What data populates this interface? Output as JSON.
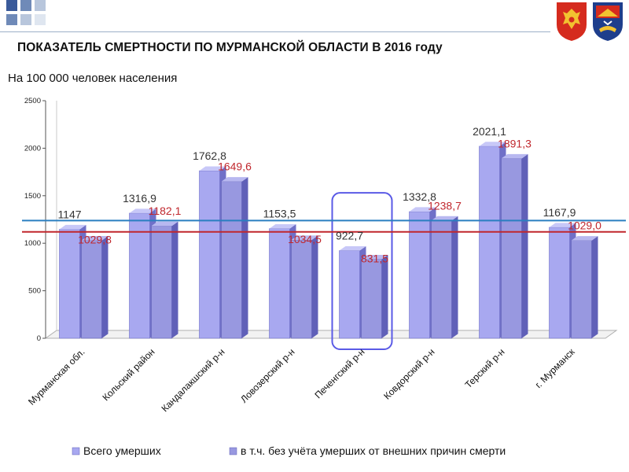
{
  "header": {
    "title": "ПОКАЗАТЕЛЬ СМЕРТНОСТИ ПО МУРМАНСКОЙ ОБЛАСТИ В 2016 году",
    "subtitle": "На 100 000 человек населения"
  },
  "emblems": [
    {
      "name": "russia-coat-of-arms-icon",
      "color": "#d52b1e"
    },
    {
      "name": "murmansk-oblast-coat-of-arms-icon",
      "color": "#d52b1e"
    }
  ],
  "colors": {
    "series_all": "#a8a8f0",
    "series_all_dark": "#7070c8",
    "series_excl": "#9898e0",
    "series_excl_dark": "#6060b8",
    "blue_line": "#2a7fc0",
    "red_line": "#c0272d",
    "highlight": "#5a5ae6"
  },
  "chart_data": {
    "type": "bar",
    "categories": [
      "Мурманская обл.",
      "Кольский район",
      "Кандалакшский р-н",
      "Ловозерский р-н",
      "Печенгский р-н",
      "Ковдорский р-н",
      "Терский р-н",
      "г. Мурманск"
    ],
    "series": [
      {
        "name": "Всего умерших",
        "values": [
          1147,
          1316.9,
          1762.8,
          1153.5,
          922.7,
          1332.8,
          2021.1,
          1167.9
        ]
      },
      {
        "name": "в т.ч. без учёта умерших от внешних причин смерти",
        "values": [
          1029.8,
          1182.1,
          1649.6,
          1034.5,
          831.5,
          1238.7,
          1891.3,
          1029.0
        ]
      }
    ],
    "value_labels": {
      "all": [
        "1147",
        "1316,9",
        "1762,8",
        "1153,5",
        "922,7",
        "1332,8",
        "2021,1",
        "1167,9"
      ],
      "excl": [
        "1029,8",
        "1182,1",
        "1649,6",
        "1034,5",
        "831,5",
        "1238,7",
        "1891,3",
        "1029,0"
      ]
    },
    "ylim": [
      0,
      2500
    ],
    "yticks": [
      "0",
      "500",
      "1000",
      "1500",
      "2000",
      "2500"
    ],
    "reference_lines": [
      {
        "value": 1239,
        "color": "#2a7fc0"
      },
      {
        "value": 1120,
        "color": "#c0272d"
      }
    ],
    "highlighted_category": "Печенгский р-н",
    "legend": [
      "Всего умерших",
      "в т.ч. без учёта умерших от внешних причин смерти"
    ],
    "legend_position": "bottom"
  }
}
